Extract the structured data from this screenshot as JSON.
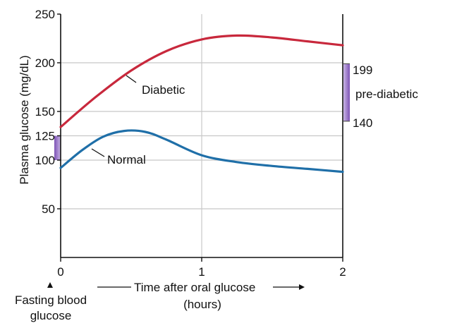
{
  "chart_data": {
    "type": "line",
    "ylabel": "Plasma glucose (mg/dL)",
    "xlabel_line1": "Time after oral glucose",
    "xlabel_line2": "(hours)",
    "xlim": [
      0,
      2
    ],
    "ylim": [
      0,
      250
    ],
    "x_ticks": [
      "0",
      "1",
      "2"
    ],
    "y_ticks": [
      {
        "value": 50,
        "label": "50"
      },
      {
        "value": 100,
        "label": "100"
      },
      {
        "value": 125,
        "label": "125"
      },
      {
        "value": 150,
        "label": "150"
      },
      {
        "value": 200,
        "label": "200"
      },
      {
        "value": 250,
        "label": "250"
      }
    ],
    "grid": true,
    "series": [
      {
        "name": "Diabetic",
        "color": "#c8283c",
        "points": [
          [
            0,
            134
          ],
          [
            0.25,
            165
          ],
          [
            0.5,
            192
          ],
          [
            0.75,
            212
          ],
          [
            1.0,
            224
          ],
          [
            1.25,
            228
          ],
          [
            1.5,
            226
          ],
          [
            1.75,
            222
          ],
          [
            2.0,
            218
          ]
        ]
      },
      {
        "name": "Normal",
        "color": "#1f6fa8",
        "points": [
          [
            0,
            92
          ],
          [
            0.15,
            110
          ],
          [
            0.3,
            124
          ],
          [
            0.45,
            130
          ],
          [
            0.6,
            129
          ],
          [
            0.75,
            121
          ],
          [
            1.0,
            105
          ],
          [
            1.25,
            98
          ],
          [
            1.5,
            94
          ],
          [
            1.75,
            91
          ],
          [
            2.0,
            88
          ]
        ]
      }
    ],
    "ranges": [
      {
        "side": "left",
        "low": 100,
        "high": 125,
        "color": "#8e63c2"
      },
      {
        "side": "right",
        "low": 140,
        "high": 199,
        "color": "#8e63c2",
        "low_label": "140",
        "high_label": "199",
        "label": "pre-diabetic"
      }
    ],
    "annotations": {
      "fasting_line1": "Fasting blood",
      "fasting_line2": "glucose"
    }
  }
}
